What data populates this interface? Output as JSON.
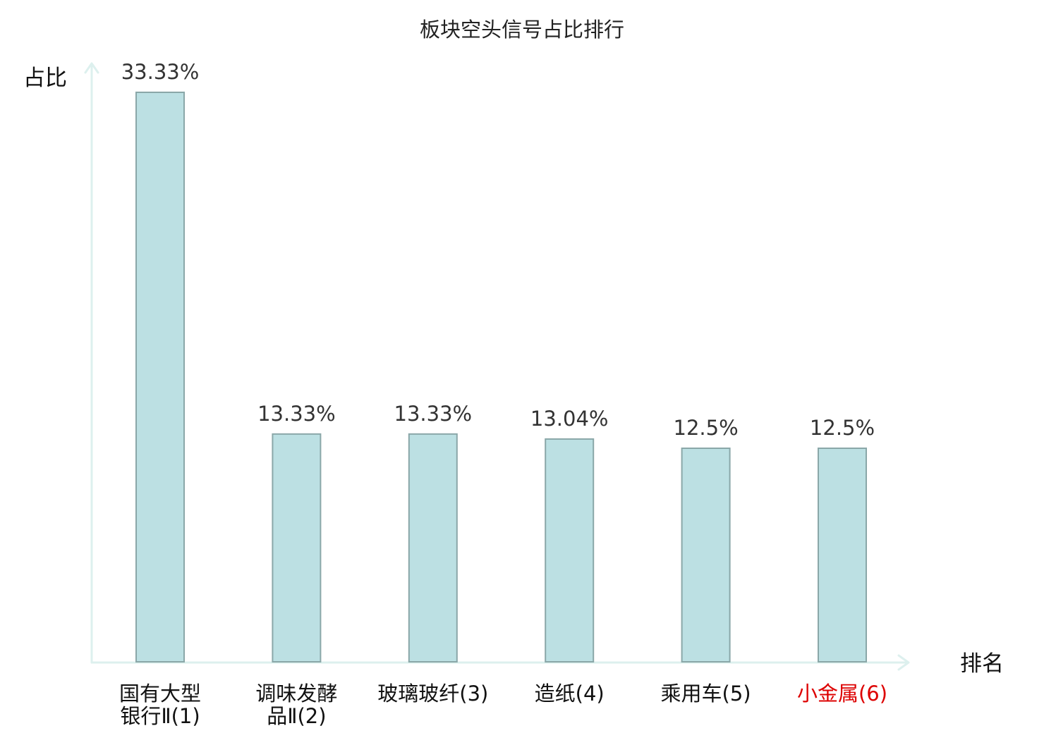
{
  "chart_data": {
    "type": "bar",
    "title": "板块空头信号占比排行",
    "ylabel": "占比",
    "xlabel": "排名",
    "categories": [
      [
        "国有大型",
        "银行Ⅱ(1)"
      ],
      [
        "调味发酵",
        "品Ⅱ(2)"
      ],
      [
        "玻璃玻纤(3)"
      ],
      [
        "造纸(4)"
      ],
      [
        "乘用车(5)"
      ],
      [
        "小金属(6)"
      ]
    ],
    "values": [
      33.33,
      13.33,
      13.33,
      13.04,
      12.5,
      12.5
    ],
    "value_labels": [
      "33.33%",
      "13.33%",
      "13.33%",
      "13.04%",
      "12.5%",
      "12.5%"
    ],
    "highlight_index": 5,
    "ylim": [
      0,
      33.33
    ],
    "grid": false,
    "legend": "none"
  },
  "colors": {
    "bar_fill": "#bce0e3",
    "bar_stroke": "#8aa7a8",
    "axis": "#ddf0ee",
    "text": "#111111",
    "value_text": "#333333",
    "highlight": "#dd0000"
  }
}
